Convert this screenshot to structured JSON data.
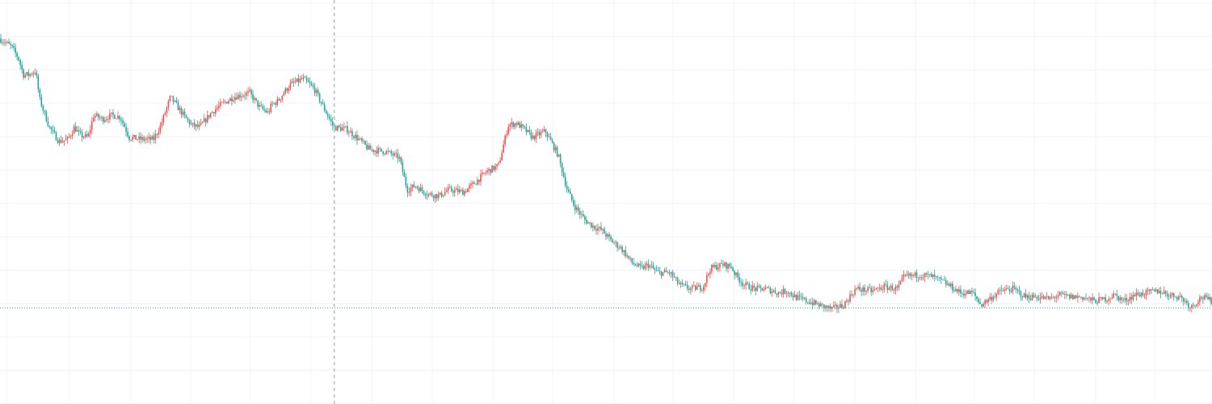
{
  "colors": {
    "background": "#ffffff",
    "grid": "#f0f3fa",
    "up": "#ef5350",
    "down": "#26a69a",
    "crosshair": "#9598a1",
    "price_line": "#26a69a"
  },
  "crosshair": {
    "candle_index": 205
  },
  "chart_data": {
    "type": "candlestick",
    "title": "",
    "xlabel": "",
    "ylabel": "",
    "ylim": [
      0,
      100
    ],
    "grid": true,
    "legend": "none",
    "last_price": 76.2,
    "candle_count": 745,
    "anchors": [
      [
        0,
        9.5
      ],
      [
        15,
        11.5
      ],
      [
        24,
        14.5
      ],
      [
        30,
        18.5
      ],
      [
        37,
        18.5
      ],
      [
        45,
        17.5
      ],
      [
        50,
        24.5
      ],
      [
        62,
        31.5
      ],
      [
        74,
        35
      ],
      [
        85,
        34.5
      ],
      [
        93,
        31.5
      ],
      [
        100,
        33.5
      ],
      [
        110,
        34
      ],
      [
        117,
        28.5
      ],
      [
        128,
        29.5
      ],
      [
        140,
        28.5
      ],
      [
        150,
        29
      ],
      [
        161,
        34
      ],
      [
        176,
        34.5
      ],
      [
        191,
        34.5
      ],
      [
        200,
        31
      ],
      [
        212,
        24
      ],
      [
        228,
        28.5
      ],
      [
        238,
        31
      ],
      [
        248,
        31.5
      ],
      [
        262,
        28
      ],
      [
        274,
        26
      ],
      [
        290,
        24
      ],
      [
        310,
        23
      ],
      [
        322,
        26.5
      ],
      [
        333,
        28
      ],
      [
        337,
        26
      ],
      [
        345,
        25
      ],
      [
        352,
        23
      ],
      [
        360,
        21
      ],
      [
        376,
        19.5
      ],
      [
        390,
        22
      ],
      [
        400,
        26
      ],
      [
        414,
        31.5
      ],
      [
        430,
        32
      ],
      [
        445,
        34.5
      ],
      [
        458,
        37
      ],
      [
        478,
        37.5
      ],
      [
        495,
        39
      ],
      [
        505,
        47
      ],
      [
        515,
        46
      ],
      [
        530,
        48
      ],
      [
        545,
        48.5
      ],
      [
        555,
        47
      ],
      [
        575,
        47.5
      ],
      [
        590,
        45
      ],
      [
        603,
        42.5
      ],
      [
        618,
        41
      ],
      [
        630,
        31
      ],
      [
        640,
        30.5
      ],
      [
        650,
        32
      ],
      [
        660,
        34
      ],
      [
        676,
        32.5
      ],
      [
        692,
        38.5
      ],
      [
        703,
        47
      ],
      [
        712,
        51
      ],
      [
        725,
        54.5
      ],
      [
        735,
        56
      ],
      [
        746,
        57
      ],
      [
        757,
        59.5
      ],
      [
        770,
        61.5
      ],
      [
        783,
        65
      ],
      [
        795,
        66.5
      ],
      [
        803,
        65.5
      ],
      [
        815,
        67.5
      ],
      [
        830,
        67.5
      ],
      [
        842,
        70.5
      ],
      [
        855,
        71.5
      ],
      [
        871,
        71
      ],
      [
        880,
        66.5
      ],
      [
        895,
        65.5
      ],
      [
        906,
        66
      ],
      [
        911,
        68
      ],
      [
        922,
        70.5
      ],
      [
        935,
        71.5
      ],
      [
        949,
        71.5
      ],
      [
        965,
        72.5
      ],
      [
        975,
        72
      ],
      [
        985,
        73.5
      ],
      [
        999,
        74.5
      ],
      [
        1015,
        75.5
      ],
      [
        1030,
        76.5
      ],
      [
        1045,
        75.5
      ],
      [
        1060,
        71.5
      ],
      [
        1080,
        72
      ],
      [
        1095,
        71
      ],
      [
        1112,
        71.5
      ],
      [
        1120,
        68.5
      ],
      [
        1140,
        68
      ],
      [
        1155,
        68.5
      ],
      [
        1170,
        70
      ],
      [
        1190,
        72.5
      ],
      [
        1205,
        72.5
      ],
      [
        1215,
        75.5
      ],
      [
        1225,
        74
      ],
      [
        1240,
        72
      ],
      [
        1255,
        71.5
      ],
      [
        1270,
        73.5
      ],
      [
        1285,
        73.5
      ],
      [
        1300,
        74
      ],
      [
        1312,
        73
      ],
      [
        1325,
        73.5
      ],
      [
        1340,
        73.5
      ],
      [
        1355,
        74.5
      ],
      [
        1370,
        74
      ],
      [
        1380,
        73
      ],
      [
        1392,
        74.5
      ],
      [
        1405,
        73
      ],
      [
        1420,
        72.5
      ],
      [
        1435,
        72
      ],
      [
        1449,
        73
      ],
      [
        1462,
        73.5
      ],
      [
        1475,
        76
      ],
      [
        1488,
        73.5
      ],
      [
        1500,
        74.5
      ]
    ]
  }
}
